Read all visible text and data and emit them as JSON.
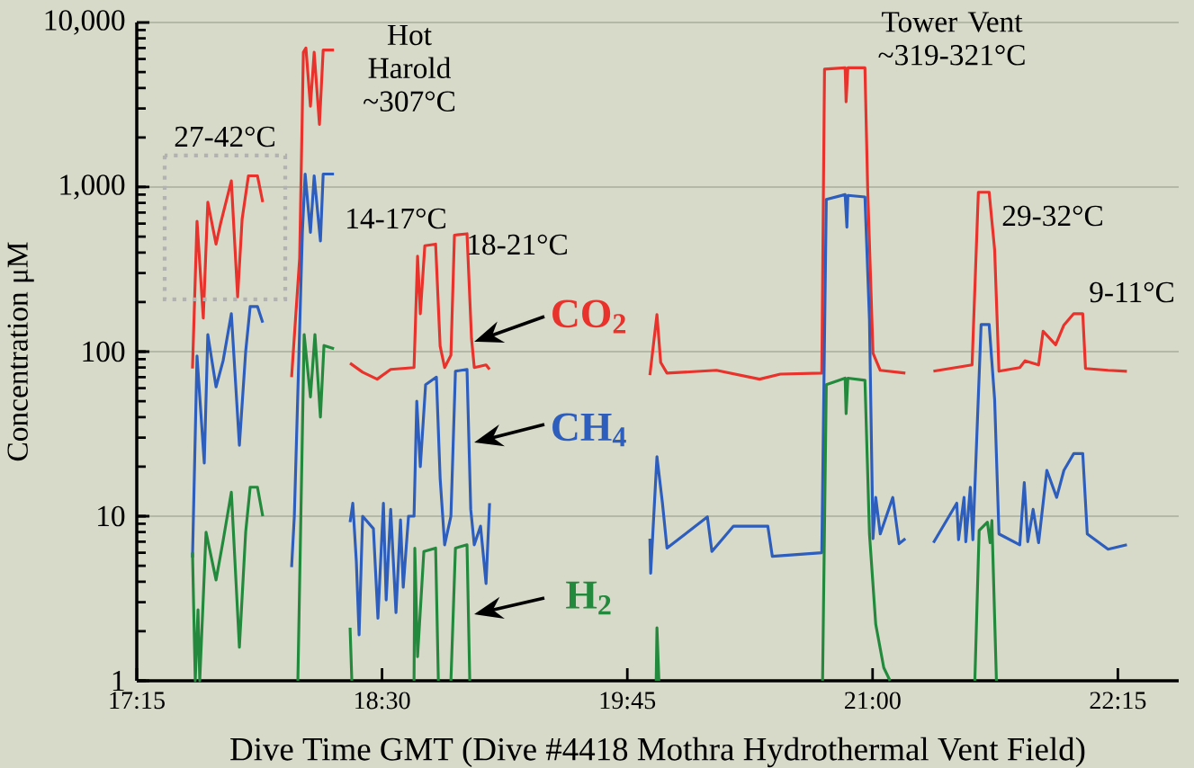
{
  "chart_data": {
    "type": "line",
    "xlabel": "Dive Time GMT (Dive #4418 Mothra Hydrothermal Vent Field)",
    "ylabel": "Concentration μM",
    "log": "y",
    "grid": "y",
    "xlim": [
      17.25,
      22.56
    ],
    "xticks": [
      {
        "value": 17.25,
        "label": "17:15"
      },
      {
        "value": 18.5,
        "label": "18:30"
      },
      {
        "value": 19.75,
        "label": "19:45"
      },
      {
        "value": 21,
        "label": "21:00"
      },
      {
        "value": 22.25,
        "label": "22:15"
      }
    ],
    "ylim": [
      1,
      10000
    ],
    "yticks": [
      1,
      10,
      100,
      {
        "value": 1000,
        "label": "1,000"
      },
      {
        "value": 10000,
        "label": "10,000"
      }
    ],
    "annotations": [
      "27-42°C",
      "Hot Harold ~307°C",
      "14-17°C",
      "18-21°C",
      "Tower Vent ~319-321°C",
      "29-32°C",
      "9-11°C"
    ],
    "series": [
      {
        "name": "CO$_{2}$",
        "color": "#e8322b",
        "x": [
          17.534,
          17.557,
          17.589,
          17.612,
          17.654,
          17.677,
          17.732,
          17.764,
          17.787,
          17.819,
          17.865,
          17.892,
          17.95,
          18.039,
          18.08,
          18.099,
          18.112,
          18.135,
          18.154,
          18.181,
          18.2,
          18.255,
          18.3,
          18.337,
          18.401,
          18.475,
          18.544,
          18.663,
          18.681,
          18.695,
          18.718,
          18.773,
          18.796,
          18.819,
          18.851,
          18.869,
          18.933,
          18.956,
          18.97,
          19.03,
          19.048,
          19.4,
          19.865,
          19.901,
          19.92,
          19.952,
          20.204,
          20.424,
          20.53,
          20.741,
          20.755,
          20.86,
          20.865,
          20.874,
          20.961,
          20.975,
          21.002,
          21.039,
          21.167,
          21.25,
          21.31,
          21.507,
          21.539,
          21.594,
          21.622,
          21.644,
          21.75,
          21.777,
          21.846,
          21.869,
          21.933,
          21.975,
          22.025,
          22.071,
          22.085,
          22.2,
          22.296
        ],
        "values": [
          79,
          620,
          160,
          810,
          450,
          600,
          1090,
          215,
          640,
          1170,
          1170,
          810,
          null,
          70,
          370,
          6600,
          7000,
          3100,
          6600,
          2400,
          6800,
          6800,
          null,
          85,
          75,
          68,
          78,
          80,
          380,
          170,
          440,
          450,
          108,
          80,
          95,
          510,
          520,
          120,
          80,
          83,
          78,
          null,
          72,
          168,
          86,
          74,
          77,
          68,
          73,
          74,
          5200,
          5300,
          3300,
          5300,
          5300,
          970,
          98,
          77,
          74,
          null,
          76,
          83,
          930,
          930,
          415,
          76,
          80,
          88,
          83,
          133,
          110,
          145,
          170,
          170,
          79,
          77,
          76
        ]
      },
      {
        "name": "CH$_{4}$",
        "color": "#2d5dbd",
        "x": [
          17.534,
          17.557,
          17.594,
          17.612,
          17.654,
          17.69,
          17.732,
          17.773,
          17.805,
          17.828,
          17.865,
          17.892,
          17.95,
          18.039,
          18.053,
          18.094,
          18.108,
          18.135,
          18.154,
          18.186,
          18.2,
          18.255,
          18.3,
          18.337,
          18.351,
          18.369,
          18.383,
          18.401,
          18.456,
          18.479,
          18.507,
          18.521,
          18.544,
          18.571,
          18.594,
          18.608,
          18.635,
          18.663,
          18.677,
          18.695,
          18.722,
          18.777,
          18.796,
          18.819,
          18.851,
          18.874,
          18.933,
          18.952,
          18.97,
          19.002,
          19.03,
          19.048,
          19.4,
          19.865,
          19.869,
          19.901,
          19.929,
          19.952,
          20.158,
          20.181,
          20.291,
          20.466,
          20.489,
          20.741,
          20.764,
          20.86,
          20.869,
          20.874,
          20.961,
          20.984,
          21.002,
          21.016,
          21.039,
          21.103,
          21.135,
          21.167,
          21.25,
          21.31,
          21.429,
          21.438,
          21.466,
          21.475,
          21.498,
          21.511,
          21.553,
          21.594,
          21.622,
          21.644,
          21.75,
          21.773,
          21.791,
          21.818,
          21.846,
          21.888,
          21.938,
          21.975,
          22.025,
          22.071,
          22.094,
          22.2,
          22.296
        ],
        "values": [
          5.6,
          94,
          21,
          127,
          61,
          88,
          170,
          27,
          100,
          188,
          188,
          150,
          null,
          4.9,
          10,
          530,
          1200,
          530,
          1170,
          470,
          1200,
          1200,
          null,
          9.2,
          12,
          5.3,
          1.9,
          10,
          8.4,
          2.4,
          12,
          3.1,
          11,
          2.6,
          9.5,
          3.7,
          10,
          10,
          50,
          20,
          63,
          70,
          17,
          6.7,
          10,
          76,
          78,
          11,
          6.7,
          8.7,
          3.9,
          12,
          null,
          7.3,
          4.5,
          23,
          12,
          6.4,
          9.9,
          6.1,
          8.7,
          8.7,
          5.7,
          6,
          840,
          900,
          570,
          890,
          870,
          156,
          7.3,
          13,
          7.8,
          13,
          6.8,
          7.3,
          null,
          6.9,
          12,
          7.2,
          13,
          7,
          15,
          7.2,
          146,
          146,
          51,
          7.8,
          6.7,
          16,
          7,
          11,
          6.9,
          19,
          13,
          19,
          24,
          24,
          7.8,
          6.3,
          6.7
        ]
      },
      {
        "name": "H$_{2}$",
        "color": "#23893d",
        "x": [
          17.534,
          17.548,
          17.562,
          17.571,
          17.603,
          17.654,
          17.69,
          17.732,
          17.773,
          17.805,
          17.828,
          17.865,
          17.892,
          17.95,
          18.071,
          18.103,
          18.135,
          18.158,
          18.186,
          18.204,
          18.255,
          18.3,
          18.337,
          18.346,
          18.5,
          18.663,
          18.667,
          18.681,
          18.713,
          18.773,
          18.787,
          18.82,
          18.851,
          18.874,
          18.933,
          18.947,
          19.4,
          19.897,
          19.901,
          19.911,
          20.3,
          20.745,
          20.764,
          20.86,
          20.865,
          20.874,
          20.961,
          20.984,
          21.016,
          21.057,
          21.089,
          21.3,
          21.521,
          21.543,
          21.585,
          21.599,
          21.608,
          21.631
        ],
        "values": [
          6,
          1,
          2.7,
          1,
          8,
          4.1,
          7.1,
          14,
          1.6,
          8,
          15,
          15,
          10,
          null,
          1,
          127,
          53,
          127,
          40,
          109,
          104,
          null,
          2.1,
          1,
          null,
          1,
          6.4,
          1.4,
          6.1,
          6.4,
          1,
          null,
          1,
          6.4,
          6.7,
          1,
          null,
          1,
          2.1,
          1,
          null,
          1,
          63,
          69,
          42,
          69,
          67,
          7.8,
          2.2,
          1.2,
          1,
          null,
          1,
          8.2,
          9.2,
          6.9,
          9.4,
          1
        ]
      }
    ]
  }
}
